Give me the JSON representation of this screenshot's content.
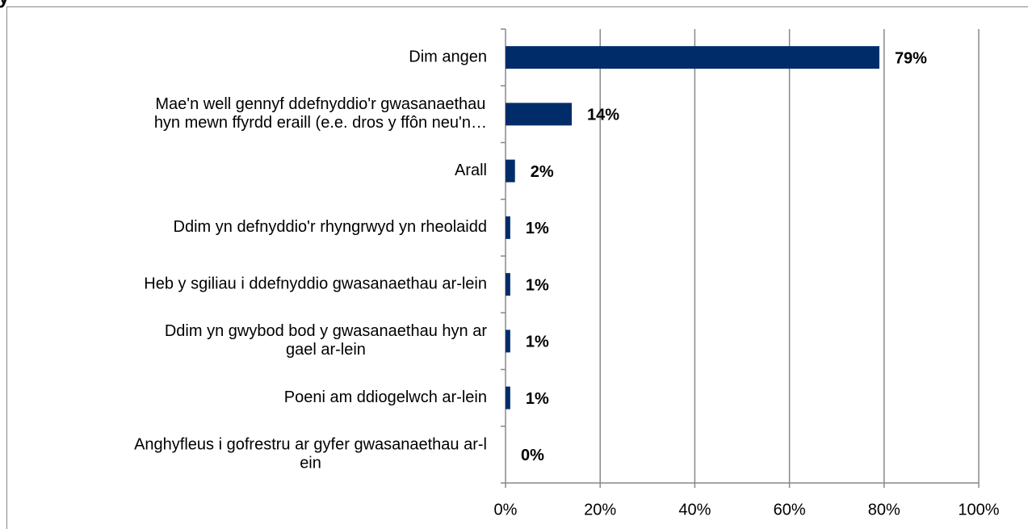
{
  "chart_data": {
    "type": "bar",
    "orientation": "horizontal",
    "title": "y",
    "categories": [
      "Dim angen",
      "Mae'n well gennyf ddefnyddio'r gwasanaethau hyn mewn ffyrdd eraill (e.e. dros y ffôn neu'n…",
      "Arall",
      "Ddim yn defnyddio'r rhyngrwyd yn rheolaidd",
      "Heb y sgiliau i ddefnyddio gwasanaethau ar-lein",
      "Ddim yn gwybod bod y gwasanaethau hyn ar gael ar-lein",
      "Poeni am ddiogelwch ar-lein",
      "Anghyfleus i gofrestru ar gyfer gwasanaethau ar-lein"
    ],
    "values": [
      79,
      14,
      2,
      1,
      1,
      1,
      1,
      0
    ],
    "value_labels": [
      "79%",
      "14%",
      "2%",
      "1%",
      "1%",
      "1%",
      "1%",
      "0%"
    ],
    "color": "#002d6a",
    "xlim": [
      0,
      100
    ],
    "xticks": [
      {
        "value": 0,
        "label": "0%"
      },
      {
        "value": 20,
        "label": "20%"
      },
      {
        "value": 40,
        "label": "40%"
      },
      {
        "value": 60,
        "label": "60%"
      },
      {
        "value": 80,
        "label": "80%"
      },
      {
        "value": 100,
        "label": "100%"
      }
    ],
    "grid": true
  }
}
